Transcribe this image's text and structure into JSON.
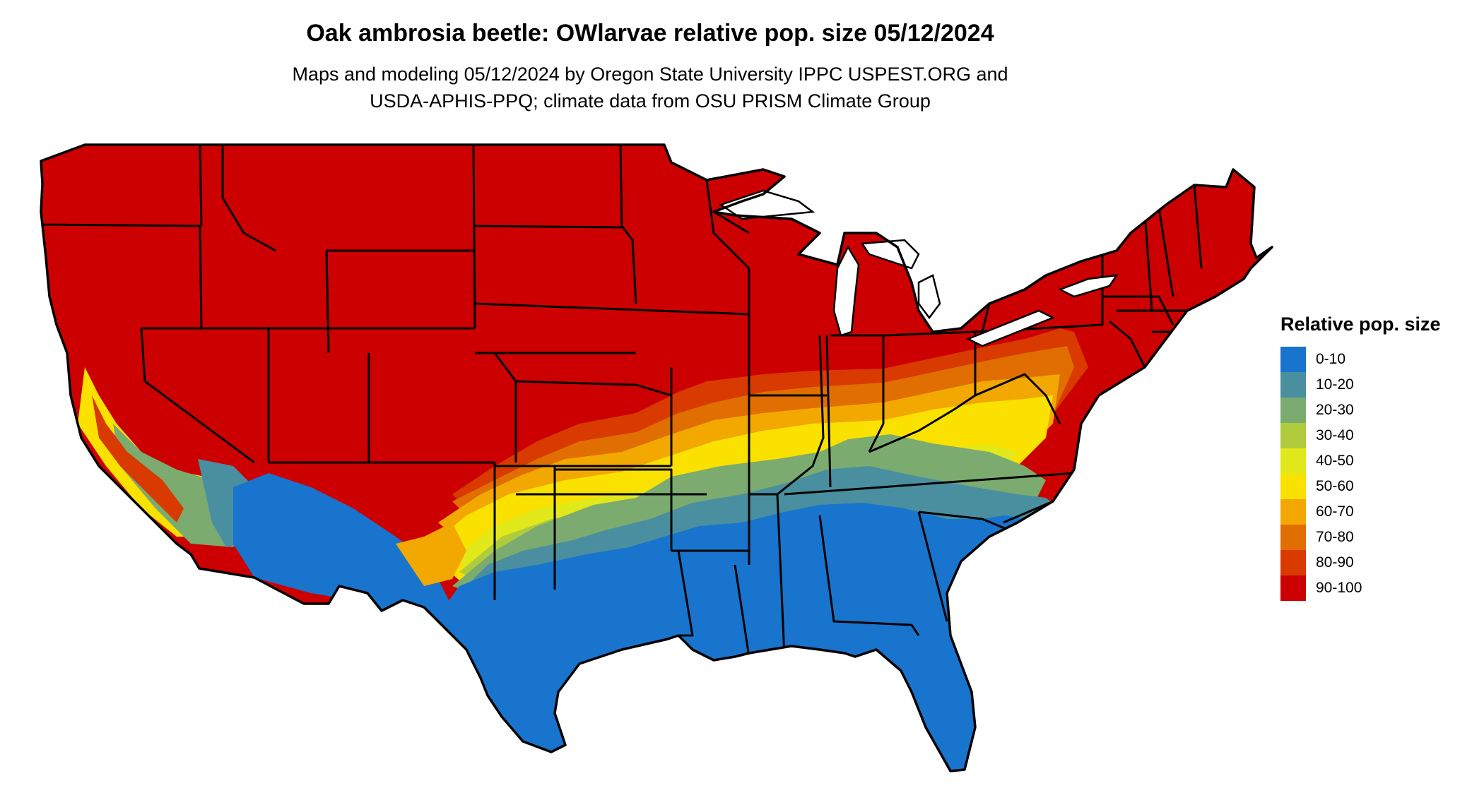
{
  "header": {
    "title": "Oak ambrosia beetle: OWlarvae relative pop. size 05/12/2024",
    "subtitle_line1": "Maps and modeling 05/12/2024 by Oregon State University IPPC USPEST.ORG and",
    "subtitle_line2": "USDA-APHIS-PPQ; climate data from OSU PRISM Climate Group"
  },
  "legend": {
    "title": "Relative pop. size",
    "items": [
      {
        "label": "0-10",
        "color": "#1874cd"
      },
      {
        "label": "10-20",
        "color": "#4a8fa0"
      },
      {
        "label": "20-30",
        "color": "#7bab6f"
      },
      {
        "label": "30-40",
        "color": "#b0cc3c"
      },
      {
        "label": "40-50",
        "color": "#e2e91a"
      },
      {
        "label": "50-60",
        "color": "#fbe100"
      },
      {
        "label": "60-70",
        "color": "#f2a800"
      },
      {
        "label": "70-80",
        "color": "#e06e00"
      },
      {
        "label": "80-90",
        "color": "#d83a00"
      },
      {
        "label": "90-100",
        "color": "#cc0000"
      }
    ]
  },
  "map": {
    "region": "conterminous-united-states",
    "outline_color": "#000000"
  }
}
